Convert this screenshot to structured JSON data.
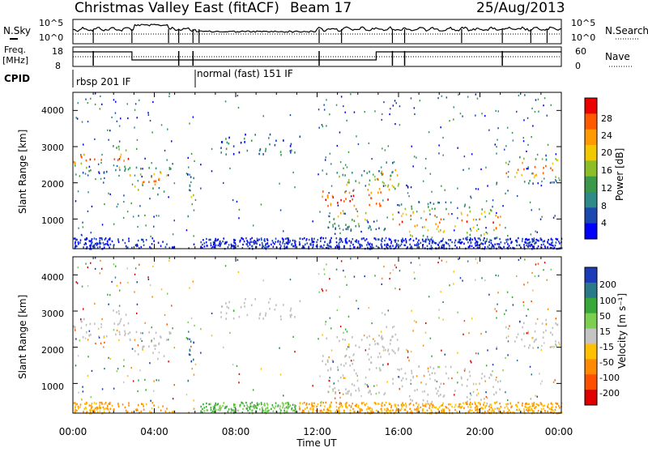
{
  "header": {
    "station": "Christmas Valley East (fitACF)",
    "beam": "Beam 17",
    "date": "25/Aug/2013"
  },
  "noise_panel": {
    "left_label": "N.Sky",
    "right_label": "N.Search",
    "ticks": [
      "10^5",
      "10^0"
    ],
    "right_ticks": [
      "10^5",
      "10^0"
    ]
  },
  "freq_panel": {
    "left_label_1": "Freq.",
    "left_label_2": "[MHz]",
    "left_ticks": [
      "18",
      "8"
    ],
    "right_label": "Nave",
    "right_ticks": [
      "60",
      "0"
    ]
  },
  "cpid": {
    "label": "CPID",
    "segments": [
      {
        "name": "rbsp 201 IF",
        "start_hour": 0
      },
      {
        "name": "normal (fast) 151 IF",
        "start_hour": 6
      }
    ]
  },
  "x_axis": {
    "label": "Time UT",
    "ticks": [
      "00:00",
      "04:00",
      "08:00",
      "12:00",
      "16:00",
      "20:00",
      "00:00"
    ]
  },
  "power_panel": {
    "ylabel": "Slant Range [km]",
    "yticks": [
      "4000",
      "3000",
      "2000",
      "1000"
    ],
    "colorbar_label": "Power [dB]",
    "colorbar_ticks": [
      "28",
      "24",
      "20",
      "16",
      "12",
      "8",
      "4"
    ],
    "colors": [
      "#ee0000",
      "#ff5a00",
      "#ff9a00",
      "#f2c800",
      "#8cbe28",
      "#3a9a4a",
      "#2f8a8a",
      "#1a4ab0",
      "#0000ff"
    ]
  },
  "velocity_panel": {
    "ylabel": "Slant Range [km]",
    "yticks": [
      "4000",
      "3000",
      "2000",
      "1000"
    ],
    "colorbar_label": "Velocity [m s⁻¹]",
    "colorbar_ticks": [
      "200",
      "100",
      "50",
      "15",
      "-15",
      "-50",
      "-100",
      "-200"
    ],
    "colors": [
      "#1a3cb8",
      "#2a7a8a",
      "#38a838",
      "#7cd050",
      "#c4c4c4",
      "#ffc000",
      "#ff8a00",
      "#ff5000",
      "#e00000"
    ],
    "ground_color": "#bebebe"
  },
  "chart_data": {
    "type": "heatmap",
    "x_range_hours": [
      0,
      24
    ],
    "y_range_km": [
      180,
      4500
    ],
    "power_regions": [
      {
        "t0": 0.0,
        "t1": 2.8,
        "r0": 2300,
        "r1": 3100,
        "level": "high"
      },
      {
        "t0": 2.5,
        "t1": 4.8,
        "r0": 1700,
        "r1": 2500,
        "level": "high"
      },
      {
        "t0": 5.6,
        "t1": 6.0,
        "r0": 1000,
        "r1": 2300,
        "level": "medium"
      },
      {
        "t0": 7.2,
        "t1": 11.3,
        "r0": 2800,
        "r1": 3400,
        "level": "low"
      },
      {
        "t0": 12.2,
        "t1": 15.8,
        "r0": 700,
        "r1": 2400,
        "level": "high"
      },
      {
        "t0": 14.8,
        "t1": 16.0,
        "r0": 1800,
        "r1": 2600,
        "level": "high"
      },
      {
        "t0": 16.0,
        "t1": 21.0,
        "r0": 400,
        "r1": 1500,
        "level": "high"
      },
      {
        "t0": 21.2,
        "t1": 24.0,
        "r0": 2000,
        "r1": 2800,
        "level": "high"
      }
    ]
  }
}
